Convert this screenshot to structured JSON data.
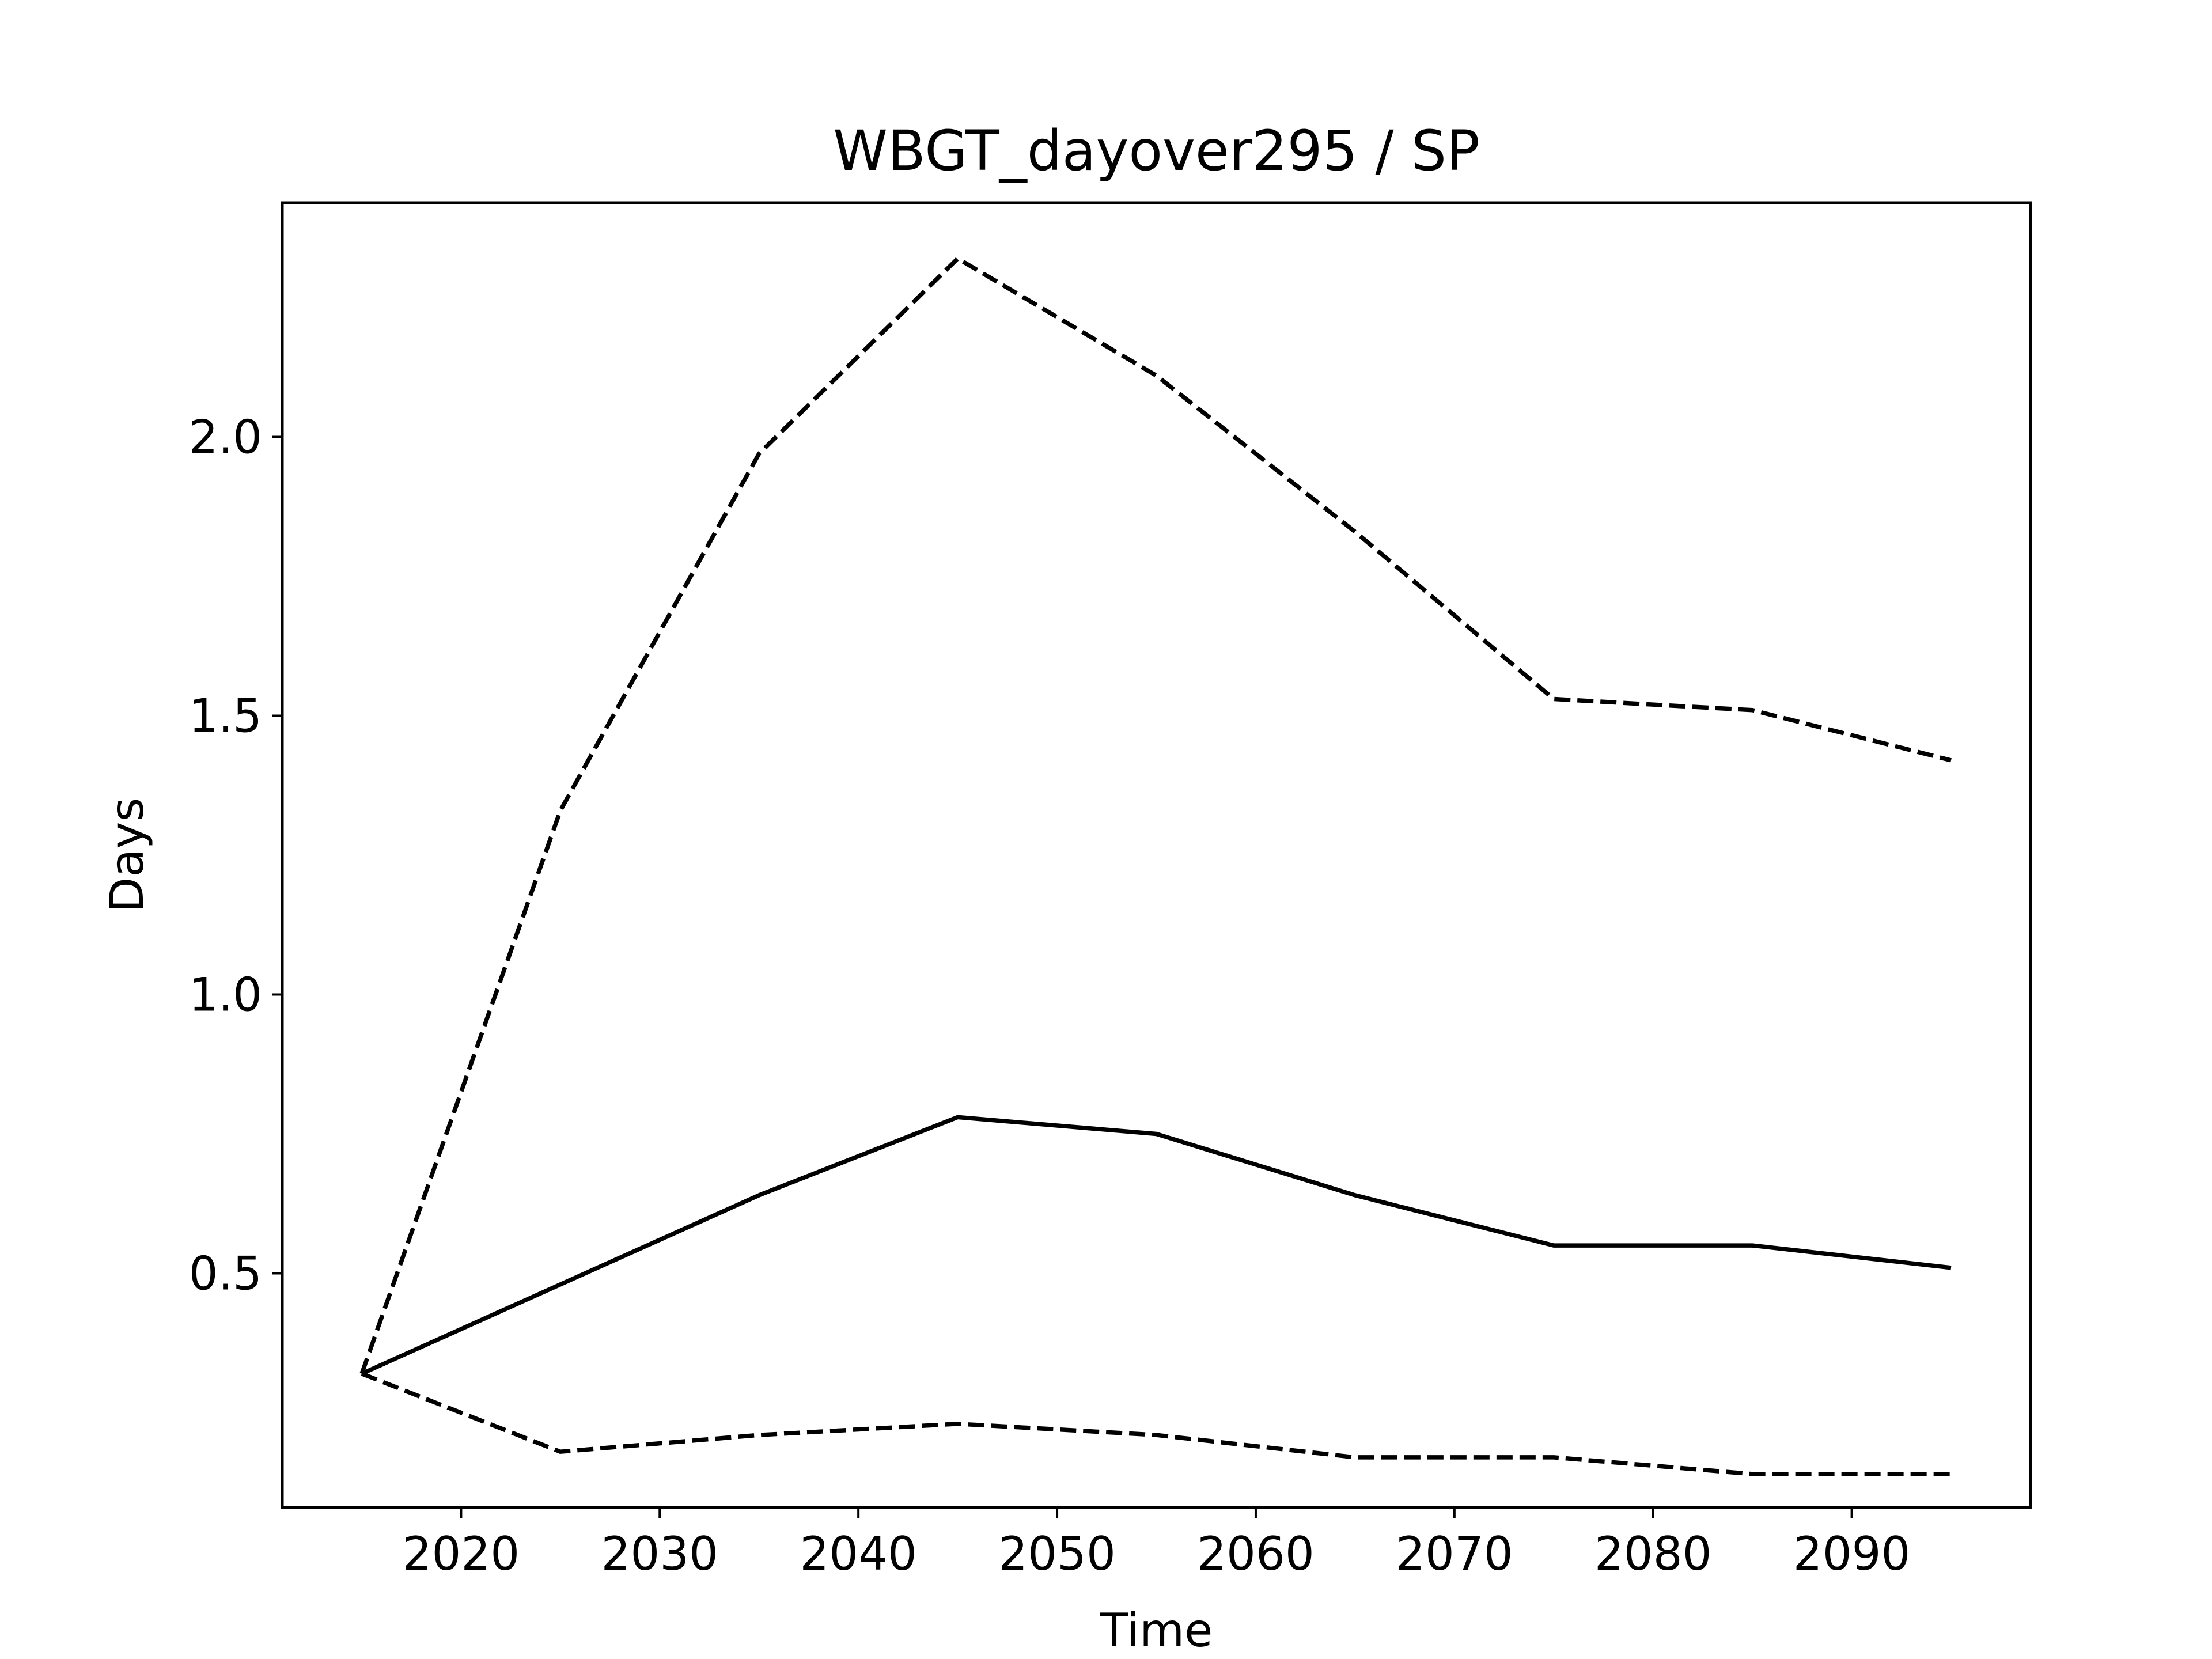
{
  "chart_data": {
    "type": "line",
    "title": "WBGT_dayover295 / SP",
    "xlabel": "Time",
    "ylabel": "Days",
    "xlim": [
      2011,
      2099
    ],
    "ylim": [
      0.08,
      2.42
    ],
    "xticks": [
      2020,
      2030,
      2040,
      2050,
      2060,
      2070,
      2080,
      2090
    ],
    "yticks": [
      0.5,
      1.0,
      1.5,
      2.0
    ],
    "xtick_labels": [
      "2020",
      "2030",
      "2040",
      "2050",
      "2060",
      "2070",
      "2080",
      "2090"
    ],
    "ytick_labels": [
      "0.5",
      "1.0",
      "1.5",
      "2.0"
    ],
    "grid": false,
    "x": [
      2015,
      2025,
      2035,
      2045,
      2055,
      2065,
      2075,
      2085,
      2095
    ],
    "series": [
      {
        "style": "dashed",
        "color": "#000000",
        "values": [
          0.32,
          1.33,
          1.97,
          2.32,
          2.11,
          1.83,
          1.53,
          1.51,
          1.42
        ]
      },
      {
        "style": "solid",
        "color": "#000000",
        "values": [
          0.32,
          0.48,
          0.64,
          0.78,
          0.75,
          0.64,
          0.55,
          0.55,
          0.51
        ]
      },
      {
        "style": "dashed",
        "color": "#000000",
        "values": [
          0.32,
          0.18,
          0.21,
          0.23,
          0.21,
          0.17,
          0.17,
          0.14,
          0.14
        ]
      }
    ]
  }
}
